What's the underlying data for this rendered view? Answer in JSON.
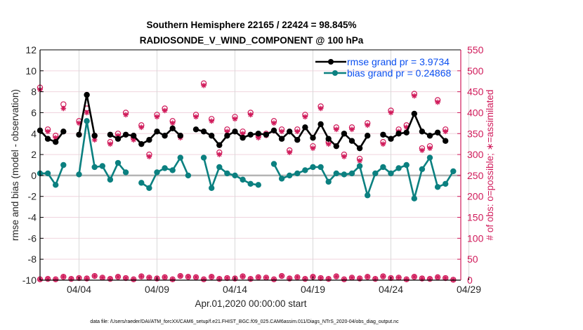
{
  "chart_data": {
    "type": "line",
    "title": [
      "Southern Hemisphere 22165 / 22424 = 98.845%",
      "RADIOSONDE_V_WIND_COMPONENT @ 100 hPa"
    ],
    "xlabel": "Apr.01,2020 00:00:00 start",
    "ylabel": "rmse and bias (model - observation)",
    "ylabel_right": "# of obs: o=possible; ∗=assimilated",
    "footer": "data file: /Users/raeder/DAI/ATM_forcXX/CAM6_setup/f.e21.FHIST_BGC.f09_025.CAM6assim.011/Diags_NTrS_2020-04/obs_diag_output.nc",
    "x_start_day": 1.5,
    "x_step_days": 0.5,
    "xlim_days": [
      1.5,
      28.5
    ],
    "x_ticks": [
      {
        "day": 4,
        "label": "04/04"
      },
      {
        "day": 9,
        "label": "04/09"
      },
      {
        "day": 14,
        "label": "04/14"
      },
      {
        "day": 19,
        "label": "04/19"
      },
      {
        "day": 24,
        "label": "04/24"
      },
      {
        "day": 29,
        "label": "04/29"
      }
    ],
    "ylim": [
      -10,
      12
    ],
    "y_ticks": [
      12,
      10,
      8,
      6,
      4,
      2,
      0,
      -2,
      -4,
      -6,
      -8,
      -10
    ],
    "ylim_right": [
      0,
      550
    ],
    "y_ticks_right": [
      550,
      500,
      450,
      400,
      350,
      300,
      250,
      200,
      150,
      100,
      50,
      0
    ],
    "grid": true,
    "legend_position": "top-right",
    "series": [
      {
        "name": "rmse grand pr = 3.9734",
        "color": "#000000",
        "axis": "left",
        "values": [
          4.3,
          3.5,
          3.2,
          4.2,
          null,
          3.9,
          7.7,
          3.8,
          null,
          3.9,
          3.5,
          3.9,
          3.8,
          3.0,
          3.4,
          4.2,
          3.8,
          4.5,
          3.8,
          null,
          4.4,
          4.2,
          3.8,
          2.9,
          3.8,
          4.2,
          3.6,
          3.9,
          4.0,
          3.9,
          4.3,
          3.5,
          4.2,
          3.4,
          4.6,
          3.6,
          4.9,
          3.5,
          2.8,
          4.0,
          3.3,
          2.6,
          3.8,
          null,
          3.9,
          3.5,
          4.0,
          4.1,
          5.9,
          4.2,
          3.8,
          4.1,
          3.3,
          null
        ]
      },
      {
        "name": "bias grand pr = 0.24868",
        "color": "#0b8080",
        "axis": "left",
        "values": [
          0.2,
          0.2,
          -0.9,
          1.0,
          null,
          0.1,
          5.2,
          0.8,
          0.9,
          -0.4,
          1.2,
          0.3,
          null,
          -0.7,
          -1.2,
          0.3,
          0.7,
          0.5,
          1.7,
          0.0,
          null,
          1.7,
          -1.2,
          0.8,
          0.2,
          0.0,
          -0.4,
          -0.8,
          -0.9,
          null,
          1.1,
          -0.3,
          0.0,
          0.2,
          0.5,
          0.8,
          0.8,
          -0.6,
          0.2,
          0.1,
          0.2,
          0.9,
          -1.9,
          0.2,
          0.8,
          0.2,
          0.7,
          1.0,
          -2.2,
          0.6,
          1.7,
          -1.1,
          -0.8,
          0.4
        ]
      }
    ],
    "obs_possible": [
      460,
      360,
      345,
      420,
      null,
      380,
      410,
      345,
      null,
      330,
      350,
      400,
      340,
      370,
      300,
      395,
      410,
      380,
      345,
      null,
      395,
      470,
      385,
      305,
      360,
      390,
      355,
      400,
      345,
      350,
      380,
      360,
      310,
      360,
      395,
      320,
      415,
      330,
      365,
      300,
      365,
      290,
      375,
      null,
      330,
      405,
      360,
      370,
      445,
      315,
      320,
      430,
      360,
      null
    ],
    "obs_assimilated": [
      455,
      355,
      340,
      410,
      null,
      375,
      400,
      335,
      null,
      325,
      345,
      395,
      335,
      365,
      295,
      390,
      405,
      375,
      340,
      null,
      390,
      465,
      380,
      300,
      355,
      385,
      350,
      395,
      340,
      345,
      375,
      355,
      305,
      355,
      390,
      315,
      410,
      325,
      360,
      295,
      360,
      285,
      370,
      null,
      325,
      400,
      355,
      365,
      440,
      310,
      315,
      425,
      355,
      null
    ],
    "obs_bottom_possible": [
      2,
      3,
      2,
      8,
      3,
      5,
      4,
      10,
      6,
      3,
      8,
      5,
      2,
      9,
      6,
      4,
      7,
      2,
      10,
      8,
      7,
      2,
      8,
      3,
      5,
      4,
      9,
      3,
      7,
      6,
      2,
      10,
      4,
      7,
      3,
      8,
      5,
      3,
      9,
      2,
      6,
      4,
      8,
      3,
      9,
      5,
      6,
      2,
      8,
      4,
      3,
      7,
      5,
      1
    ],
    "obs_bottom_assimilated": [
      2,
      3,
      2,
      8,
      3,
      5,
      4,
      10,
      6,
      3,
      8,
      5,
      2,
      9,
      6,
      4,
      7,
      2,
      10,
      8,
      7,
      2,
      8,
      3,
      5,
      4,
      9,
      3,
      7,
      6,
      2,
      10,
      4,
      7,
      3,
      8,
      5,
      3,
      9,
      2,
      6,
      4,
      8,
      3,
      9,
      5,
      6,
      2,
      8,
      4,
      3,
      7,
      5,
      1
    ]
  },
  "colors": {
    "rmse": "#000000",
    "bias": "#0b8080",
    "obs": "#d01a5a",
    "legend_text": "#0a4ff0"
  }
}
